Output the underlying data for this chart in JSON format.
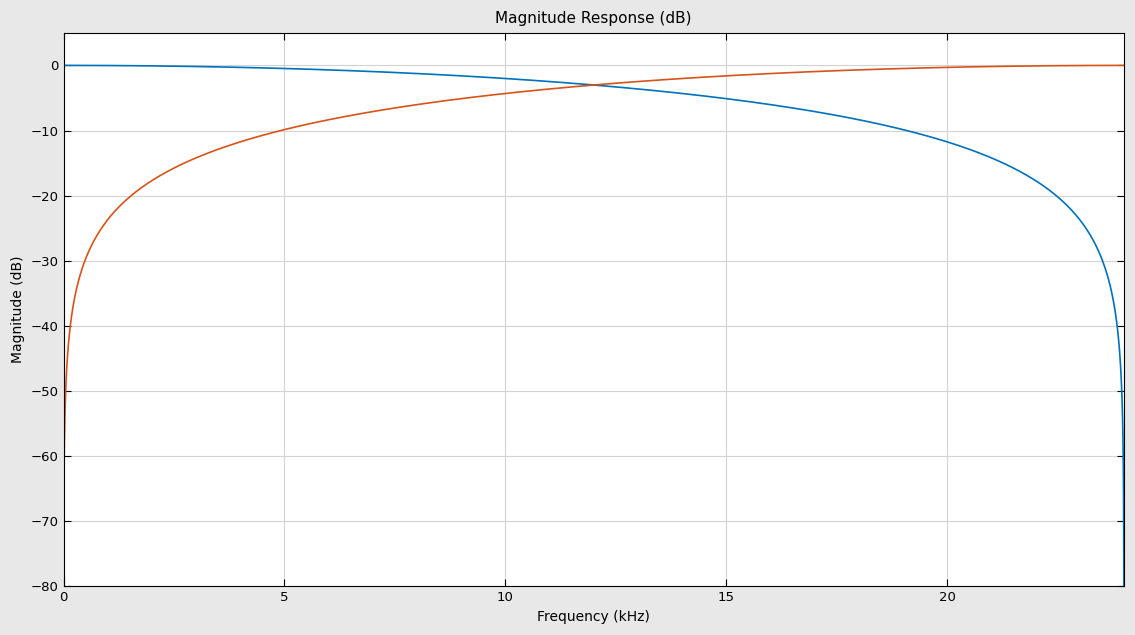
{
  "title": "Magnitude Response (dB)",
  "xlabel": "Frequency (kHz)",
  "ylabel": "Magnitude (dB)",
  "xlim": [
    0,
    24
  ],
  "ylim": [
    -80,
    5
  ],
  "yticks": [
    0,
    -10,
    -20,
    -30,
    -40,
    -50,
    -60,
    -70,
    -80
  ],
  "xticks": [
    0,
    5,
    10,
    15,
    20
  ],
  "line1_color": "#0072BD",
  "line2_color": "#D95319",
  "linewidth": 1.2,
  "fig_background": "#E8E8E8",
  "axes_background": "#FFFFFF",
  "grid_color": "#D3D3D3",
  "fmax_kHz": 24.0,
  "min_db": -80
}
